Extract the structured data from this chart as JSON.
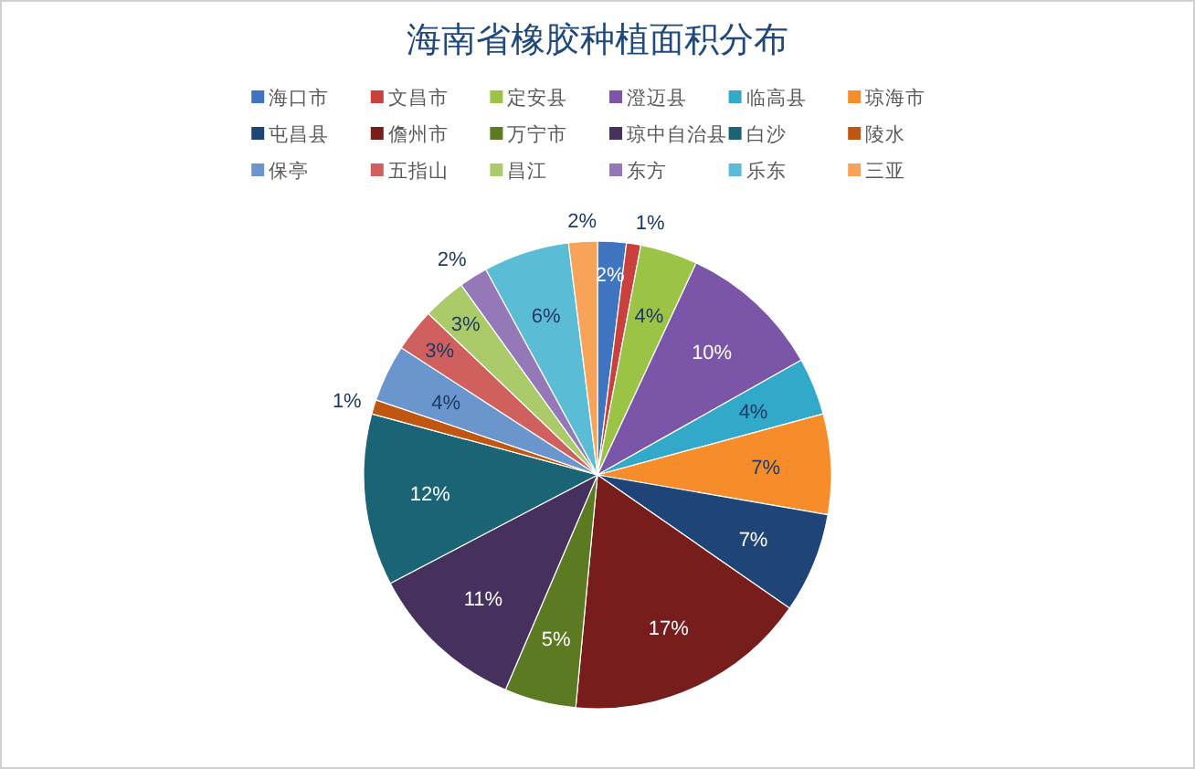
{
  "chart_data": {
    "type": "pie",
    "title": "海南省橡胶种植面积分布",
    "categories": [
      "海口市",
      "文昌市",
      "定安县",
      "澄迈县",
      "临高县",
      "琼海市",
      "屯昌县",
      "儋州市",
      "万宁市",
      "琼中自治县",
      "白沙",
      "陵水",
      "保亭",
      "五指山",
      "昌江",
      "东方",
      "乐东",
      "三亚"
    ],
    "values": [
      2,
      1,
      4,
      10,
      4,
      7,
      7,
      17,
      5,
      11,
      12,
      1,
      4,
      3,
      3,
      2,
      6,
      2
    ],
    "value_labels": [
      "2%",
      "1%",
      "4%",
      "10%",
      "4%",
      "7%",
      "7%",
      "17%",
      "5%",
      "11%",
      "12%",
      "1%",
      "4%",
      "3%",
      "3%",
      "2%",
      "6%",
      "2%"
    ],
    "colors": [
      "#3f75c0",
      "#c9403d",
      "#9bc346",
      "#7a55a8",
      "#33a9c9",
      "#f68c2a",
      "#1f4477",
      "#771e1c",
      "#5b7a22",
      "#45305e",
      "#1a6475",
      "#c0560f",
      "#6b95cd",
      "#d0605e",
      "#abca6a",
      "#9478b8",
      "#5bbcd5",
      "#f8a35a"
    ],
    "legend": "top"
  }
}
